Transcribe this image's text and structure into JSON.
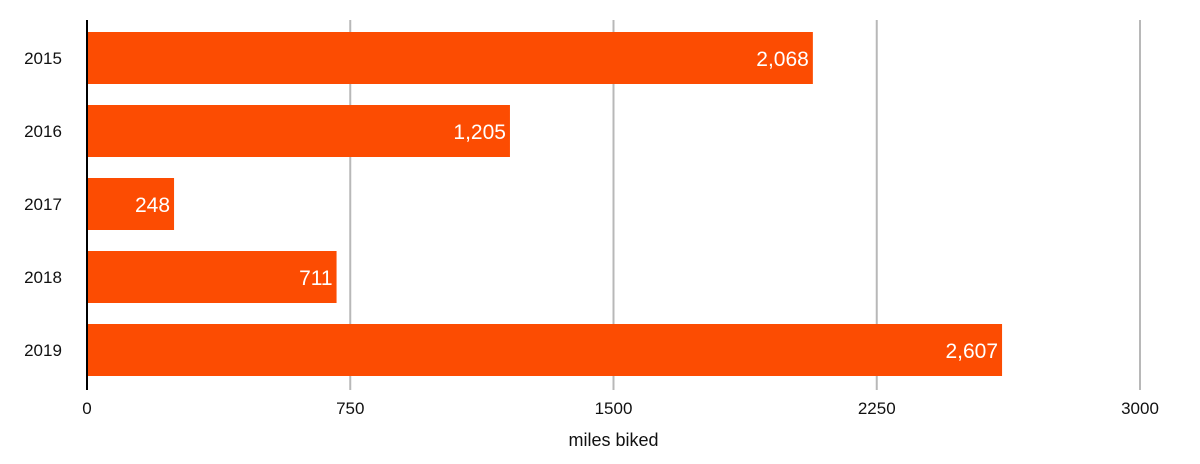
{
  "chart_data": {
    "type": "bar",
    "orientation": "horizontal",
    "categories": [
      "2015",
      "2016",
      "2017",
      "2018",
      "2019"
    ],
    "values": [
      2068,
      1205,
      248,
      711,
      2607
    ],
    "value_labels": [
      "2,068",
      "1,205",
      "248",
      "711",
      "2,607"
    ],
    "xlabel": "miles biked",
    "xlim": [
      0,
      3000
    ],
    "x_ticks": [
      0,
      750,
      1500,
      2250,
      3000
    ],
    "x_tick_labels": [
      "0",
      "750",
      "1500",
      "2250",
      "3000"
    ],
    "grid": "vertical",
    "legend": "none",
    "bar_color": "#FC4C02",
    "label_color": "#FFFFFF"
  }
}
